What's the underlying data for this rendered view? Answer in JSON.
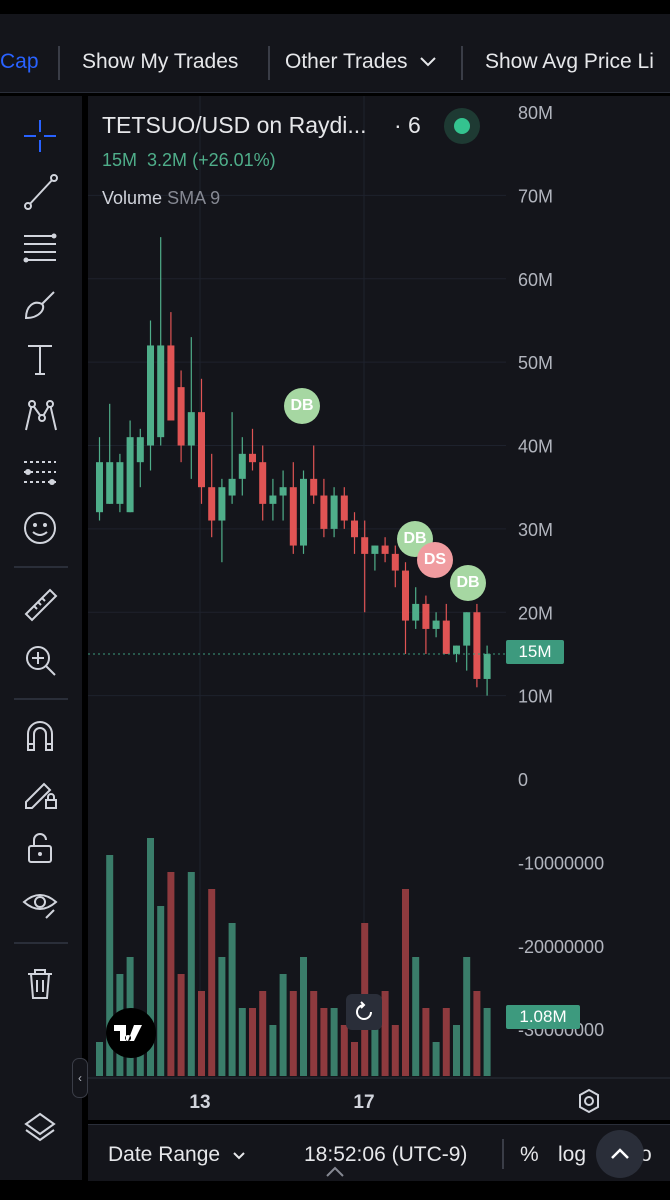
{
  "toolbar": {
    "cut_left_label": "Cap",
    "show_my_trades": "Show My Trades",
    "other_trades": "Other Trades",
    "show_avg_price": "Show Avg Price Li"
  },
  "legend": {
    "title": "TETSUO/USD on Raydi...",
    "interval": "· 6",
    "last": "15M",
    "change": "3.2M",
    "change_pct": "(+26.01%)",
    "volume_label": "Volume",
    "sma_label": "SMA 9"
  },
  "price_axis": [
    "80M",
    "70M",
    "60M",
    "50M",
    "40M",
    "30M",
    "20M",
    "10M",
    "0",
    "-10000000",
    "-20000000",
    "-30000000"
  ],
  "time_axis": [
    "13",
    "17"
  ],
  "price_tag": "15M",
  "volume_tag": "1.08M",
  "markers": [
    {
      "label": "DB",
      "kind": "buy"
    },
    {
      "label": "DB",
      "kind": "buy"
    },
    {
      "label": "DS",
      "kind": "sell"
    },
    {
      "label": "DB",
      "kind": "buy"
    }
  ],
  "bottom": {
    "date_range": "Date Range",
    "time": "18:52:06 (UTC-9)",
    "percent": "%",
    "log": "log",
    "auto": "o"
  },
  "colors": {
    "up": "#4fae8a",
    "down": "#e05454",
    "vol_up": "#3a7d6a",
    "vol_down": "#8e3a3e",
    "background": "#14151b"
  },
  "chart_data": {
    "type": "candlestick",
    "symbol": "TETSUO/USD",
    "ylim": [
      -30000000,
      80000000
    ],
    "candles": [
      {
        "o": 32,
        "h": 41,
        "l": 31,
        "c": 38
      },
      {
        "o": 33,
        "h": 45,
        "l": 33,
        "c": 38
      },
      {
        "o": 33,
        "h": 39,
        "l": 32,
        "c": 38
      },
      {
        "o": 32,
        "h": 43,
        "l": 32,
        "c": 41
      },
      {
        "o": 38,
        "h": 42,
        "l": 35,
        "c": 41
      },
      {
        "o": 40,
        "h": 55,
        "l": 37,
        "c": 52
      },
      {
        "o": 41,
        "h": 65,
        "l": 40,
        "c": 52
      },
      {
        "o": 52,
        "h": 56,
        "l": 45,
        "c": 43
      },
      {
        "o": 47,
        "h": 49,
        "l": 38,
        "c": 40
      },
      {
        "o": 40,
        "h": 53,
        "l": 36,
        "c": 44
      },
      {
        "o": 44,
        "h": 48,
        "l": 33,
        "c": 35
      },
      {
        "o": 35,
        "h": 39,
        "l": 29,
        "c": 31
      },
      {
        "o": 31,
        "h": 36,
        "l": 26,
        "c": 35
      },
      {
        "o": 34,
        "h": 44,
        "l": 33,
        "c": 36
      },
      {
        "o": 36,
        "h": 41,
        "l": 34,
        "c": 39
      },
      {
        "o": 39,
        "h": 42,
        "l": 37,
        "c": 38
      },
      {
        "o": 38,
        "h": 40,
        "l": 31,
        "c": 33
      },
      {
        "o": 33,
        "h": 36,
        "l": 31,
        "c": 34
      },
      {
        "o": 34,
        "h": 37,
        "l": 31,
        "c": 35
      },
      {
        "o": 35,
        "h": 38,
        "l": 27,
        "c": 28
      },
      {
        "o": 28,
        "h": 37,
        "l": 27,
        "c": 36
      },
      {
        "o": 36,
        "h": 40,
        "l": 33,
        "c": 34
      },
      {
        "o": 34,
        "h": 36,
        "l": 29,
        "c": 30
      },
      {
        "o": 30,
        "h": 35,
        "l": 29,
        "c": 34
      },
      {
        "o": 34,
        "h": 35,
        "l": 30,
        "c": 31
      },
      {
        "o": 31,
        "h": 32,
        "l": 27,
        "c": 29
      },
      {
        "o": 29,
        "h": 31,
        "l": 20,
        "c": 27
      },
      {
        "o": 27,
        "h": 28,
        "l": 25,
        "c": 28
      },
      {
        "o": 28,
        "h": 29,
        "l": 26,
        "c": 27
      },
      {
        "o": 27,
        "h": 28,
        "l": 23,
        "c": 25
      },
      {
        "o": 25,
        "h": 26,
        "l": 15,
        "c": 19
      },
      {
        "o": 19,
        "h": 23,
        "l": 18,
        "c": 21
      },
      {
        "o": 21,
        "h": 22,
        "l": 15,
        "c": 18
      },
      {
        "o": 18,
        "h": 20,
        "l": 17,
        "c": 19
      },
      {
        "o": 19,
        "h": 21,
        "l": 15,
        "c": 15
      },
      {
        "o": 15,
        "h": 16,
        "l": 14,
        "c": 16
      },
      {
        "o": 16,
        "h": 20,
        "l": 13,
        "c": 20
      },
      {
        "o": 20,
        "h": 21,
        "l": 11,
        "c": 12
      },
      {
        "o": 12,
        "h": 16,
        "l": 10,
        "c": 15
      }
    ],
    "volume": [
      2,
      13,
      6,
      7,
      3,
      14,
      10,
      12,
      6,
      12,
      5,
      11,
      7,
      9,
      4,
      4,
      5,
      3,
      6,
      5,
      7,
      5,
      4,
      4,
      3,
      2,
      9,
      3,
      5,
      3,
      11,
      7,
      4,
      2,
      4,
      3,
      7,
      5,
      4
    ]
  }
}
